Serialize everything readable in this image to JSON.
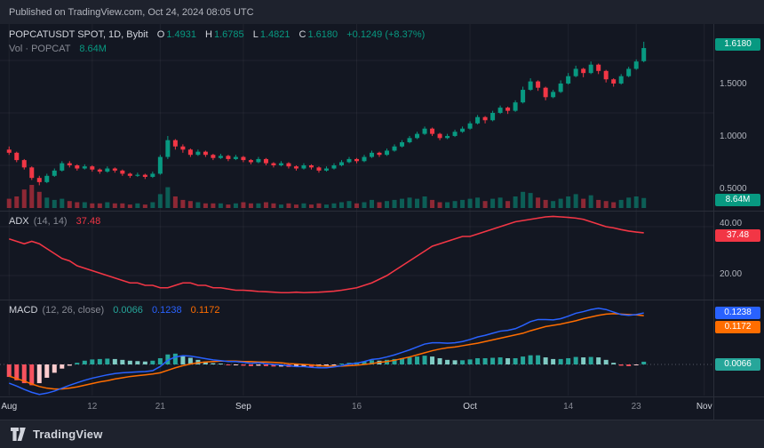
{
  "meta": {
    "published_line": "Published on TradingView.com, Oct 24, 2024 08:05 UTC"
  },
  "footer": {
    "brand": "TradingView"
  },
  "main": {
    "legend": {
      "symbol": "POPCATUSDT SPOT, 1D, Bybit",
      "o_label": "O",
      "o": "1.4931",
      "h_label": "H",
      "h": "1.6785",
      "l_label": "L",
      "l": "1.4821",
      "c_label": "C",
      "c": "1.6180",
      "change": "+0.1249 (+8.37%)"
    },
    "vol_legend": {
      "label": "Vol · POPCAT",
      "value": "8.64M"
    }
  },
  "adx": {
    "legend": {
      "name": "ADX",
      "params": "(14, 14)",
      "value": "37.48"
    }
  },
  "macd": {
    "legend": {
      "name": "MACD",
      "params": "(12, 26, close)",
      "hist": "0.0066",
      "macd": "0.1238",
      "signal": "0.1172"
    }
  },
  "price_axis": {
    "last_badge": "1.6180",
    "levels": [
      "1.5000",
      "1.0000",
      "0.5000"
    ],
    "vol_badge": "8.64M",
    "adx_levels": [
      "40.00",
      "20.00"
    ],
    "adx_badge": "37.48",
    "macd_badge": "0.1238",
    "signal_badge": "0.1172",
    "hist_badge": "0.0066"
  },
  "time_axis": {
    "total_slots": 93,
    "labels": [
      {
        "text": "Aug",
        "slot": 0,
        "major": true
      },
      {
        "text": "12",
        "slot": 11,
        "major": false
      },
      {
        "text": "21",
        "slot": 20,
        "major": false
      },
      {
        "text": "Sep",
        "slot": 31,
        "major": true
      },
      {
        "text": "16",
        "slot": 46,
        "major": false
      },
      {
        "text": "Oct",
        "slot": 61,
        "major": true
      },
      {
        "text": "14",
        "slot": 74,
        "major": false
      },
      {
        "text": "23",
        "slot": 83,
        "major": false
      },
      {
        "text": "Nov",
        "slot": 92,
        "major": true
      }
    ]
  },
  "colors": {
    "up": "#089981",
    "down": "#f23645",
    "up_vol": "rgba(8,153,129,0.55)",
    "down_vol": "rgba(242,54,69,0.55)",
    "grid": "rgba(134,137,147,0.10)"
  },
  "chart_data": [
    {
      "type": "candlestick",
      "title": "POPCATUSDT SPOT, 1D, Bybit",
      "interval": "1D",
      "y_ticks": [
        0.5,
        1.0,
        1.5
      ],
      "y_range": [
        0.28,
        1.85
      ],
      "last": {
        "o": 1.4931,
        "h": 1.6785,
        "l": 1.4821,
        "c": 1.618,
        "change": "+0.1249",
        "change_pct": "+8.37%"
      },
      "ohlc": [
        [
          0.65,
          0.68,
          0.6,
          0.62
        ],
        [
          0.62,
          0.63,
          0.53,
          0.55
        ],
        [
          0.55,
          0.56,
          0.46,
          0.48
        ],
        [
          0.48,
          0.49,
          0.36,
          0.38
        ],
        [
          0.38,
          0.4,
          0.31,
          0.34
        ],
        [
          0.34,
          0.42,
          0.33,
          0.4
        ],
        [
          0.4,
          0.47,
          0.39,
          0.45
        ],
        [
          0.45,
          0.54,
          0.44,
          0.52
        ],
        [
          0.52,
          0.54,
          0.48,
          0.5
        ],
        [
          0.5,
          0.51,
          0.45,
          0.47
        ],
        [
          0.47,
          0.51,
          0.46,
          0.49
        ],
        [
          0.49,
          0.5,
          0.44,
          0.46
        ],
        [
          0.46,
          0.47,
          0.42,
          0.44
        ],
        [
          0.44,
          0.49,
          0.43,
          0.47
        ],
        [
          0.47,
          0.48,
          0.43,
          0.45
        ],
        [
          0.45,
          0.46,
          0.4,
          0.42
        ],
        [
          0.42,
          0.43,
          0.38,
          0.4
        ],
        [
          0.4,
          0.43,
          0.39,
          0.41
        ],
        [
          0.41,
          0.42,
          0.37,
          0.39
        ],
        [
          0.39,
          0.44,
          0.38,
          0.42
        ],
        [
          0.42,
          0.6,
          0.41,
          0.58
        ],
        [
          0.58,
          0.78,
          0.56,
          0.74
        ],
        [
          0.74,
          0.75,
          0.65,
          0.68
        ],
        [
          0.68,
          0.7,
          0.62,
          0.65
        ],
        [
          0.65,
          0.66,
          0.58,
          0.6
        ],
        [
          0.6,
          0.65,
          0.59,
          0.63
        ],
        [
          0.63,
          0.64,
          0.58,
          0.6
        ],
        [
          0.6,
          0.61,
          0.55,
          0.57
        ],
        [
          0.57,
          0.61,
          0.56,
          0.59
        ],
        [
          0.59,
          0.6,
          0.54,
          0.56
        ],
        [
          0.56,
          0.6,
          0.55,
          0.58
        ],
        [
          0.58,
          0.59,
          0.53,
          0.55
        ],
        [
          0.55,
          0.56,
          0.51,
          0.53
        ],
        [
          0.53,
          0.58,
          0.52,
          0.56
        ],
        [
          0.56,
          0.57,
          0.5,
          0.52
        ],
        [
          0.52,
          0.53,
          0.48,
          0.5
        ],
        [
          0.5,
          0.54,
          0.49,
          0.52
        ],
        [
          0.52,
          0.53,
          0.47,
          0.49
        ],
        [
          0.49,
          0.5,
          0.45,
          0.47
        ],
        [
          0.47,
          0.52,
          0.46,
          0.5
        ],
        [
          0.5,
          0.51,
          0.46,
          0.48
        ],
        [
          0.48,
          0.49,
          0.43,
          0.45
        ],
        [
          0.45,
          0.49,
          0.44,
          0.47
        ],
        [
          0.47,
          0.52,
          0.46,
          0.5
        ],
        [
          0.5,
          0.55,
          0.49,
          0.53
        ],
        [
          0.53,
          0.58,
          0.52,
          0.56
        ],
        [
          0.56,
          0.57,
          0.52,
          0.54
        ],
        [
          0.54,
          0.6,
          0.53,
          0.58
        ],
        [
          0.58,
          0.64,
          0.57,
          0.62
        ],
        [
          0.62,
          0.63,
          0.58,
          0.6
        ],
        [
          0.6,
          0.66,
          0.59,
          0.64
        ],
        [
          0.64,
          0.7,
          0.63,
          0.68
        ],
        [
          0.68,
          0.74,
          0.67,
          0.72
        ],
        [
          0.72,
          0.78,
          0.71,
          0.76
        ],
        [
          0.76,
          0.82,
          0.75,
          0.8
        ],
        [
          0.8,
          0.87,
          0.79,
          0.85
        ],
        [
          0.85,
          0.86,
          0.78,
          0.8
        ],
        [
          0.8,
          0.81,
          0.74,
          0.76
        ],
        [
          0.76,
          0.8,
          0.75,
          0.78
        ],
        [
          0.78,
          0.84,
          0.77,
          0.82
        ],
        [
          0.82,
          0.87,
          0.81,
          0.85
        ],
        [
          0.85,
          0.92,
          0.84,
          0.9
        ],
        [
          0.9,
          0.98,
          0.89,
          0.96
        ],
        [
          0.96,
          0.97,
          0.9,
          0.93
        ],
        [
          0.93,
          1.02,
          0.92,
          1.0
        ],
        [
          1.0,
          1.07,
          0.99,
          1.05
        ],
        [
          1.05,
          1.06,
          0.99,
          1.02
        ],
        [
          1.02,
          1.12,
          1.01,
          1.1
        ],
        [
          1.1,
          1.25,
          1.09,
          1.22
        ],
        [
          1.22,
          1.33,
          1.21,
          1.3
        ],
        [
          1.3,
          1.31,
          1.21,
          1.24
        ],
        [
          1.24,
          1.25,
          1.12,
          1.15
        ],
        [
          1.15,
          1.22,
          1.14,
          1.2
        ],
        [
          1.2,
          1.31,
          1.19,
          1.28
        ],
        [
          1.28,
          1.38,
          1.27,
          1.35
        ],
        [
          1.35,
          1.45,
          1.34,
          1.42
        ],
        [
          1.42,
          1.43,
          1.34,
          1.38
        ],
        [
          1.38,
          1.49,
          1.37,
          1.46
        ],
        [
          1.46,
          1.47,
          1.37,
          1.4
        ],
        [
          1.4,
          1.41,
          1.29,
          1.32
        ],
        [
          1.32,
          1.33,
          1.25,
          1.28
        ],
        [
          1.28,
          1.37,
          1.27,
          1.35
        ],
        [
          1.35,
          1.44,
          1.34,
          1.42
        ],
        [
          1.42,
          1.51,
          1.41,
          1.49
        ],
        [
          1.4931,
          1.6785,
          1.4821,
          1.618
        ]
      ],
      "volume_m": [
        8,
        10,
        16,
        20,
        14,
        9,
        7,
        8,
        6,
        5,
        5,
        4,
        4,
        5,
        4,
        4,
        3,
        4,
        3,
        5,
        12,
        18,
        10,
        7,
        6,
        5,
        4,
        4,
        4,
        3,
        4,
        5,
        4,
        4,
        5,
        4,
        3,
        4,
        3,
        4,
        3,
        4,
        3,
        4,
        5,
        6,
        4,
        5,
        7,
        5,
        6,
        7,
        8,
        9,
        8,
        10,
        7,
        5,
        5,
        6,
        7,
        8,
        9,
        6,
        8,
        9,
        6,
        10,
        14,
        13,
        9,
        7,
        6,
        8,
        10,
        12,
        8,
        11,
        7,
        6,
        5,
        7,
        9,
        10,
        8.64
      ],
      "volume_last_label": "8.64M"
    },
    {
      "type": "line",
      "title": "ADX (14, 14)",
      "color": "#f23645",
      "y_ticks": [
        40,
        20
      ],
      "last": 37.48,
      "values": [
        35,
        34,
        33,
        34,
        33,
        31,
        29,
        27,
        26,
        24,
        23,
        22,
        21,
        20,
        19,
        18,
        17,
        17,
        16,
        16,
        15,
        15,
        16,
        17,
        17,
        16,
        16,
        15,
        15,
        14.5,
        14,
        14,
        13.8,
        13.5,
        13.4,
        13.2,
        13,
        13,
        13.2,
        13,
        13.1,
        13.2,
        13.4,
        13.6,
        14,
        14.5,
        15,
        16,
        17,
        18.5,
        20,
        22,
        24,
        26,
        28,
        30,
        32,
        33,
        34,
        35,
        36,
        36,
        37,
        38,
        39,
        40,
        41,
        42,
        42.5,
        43,
        43.5,
        44,
        44.2,
        44,
        43.8,
        43.5,
        43,
        42,
        41,
        40,
        39.5,
        38.8,
        38.2,
        37.8,
        37.48
      ]
    },
    {
      "type": "macd",
      "title": "MACD (12, 26, close)",
      "last": {
        "hist": 0.0066,
        "macd": 0.1238,
        "signal": 0.1172
      },
      "colors": {
        "macd": "#2962ff",
        "signal": "#ff6d00",
        "hist_pos": "#26a69a",
        "hist_pos_weak": "#80cbc4",
        "hist_neg": "#f7525f",
        "hist_neg_weak": "#fccbcd"
      },
      "macd": [
        -0.045,
        -0.052,
        -0.06,
        -0.067,
        -0.072,
        -0.069,
        -0.064,
        -0.057,
        -0.05,
        -0.044,
        -0.038,
        -0.033,
        -0.029,
        -0.025,
        -0.022,
        -0.02,
        -0.019,
        -0.018,
        -0.017,
        -0.015,
        -0.005,
        0.01,
        0.018,
        0.021,
        0.02,
        0.017,
        0.014,
        0.011,
        0.009,
        0.007,
        0.007,
        0.005,
        0.003,
        0.004,
        0.002,
        0.0,
        -0.001,
        -0.003,
        -0.005,
        -0.005,
        -0.007,
        -0.008,
        -0.008,
        -0.006,
        -0.003,
        0.001,
        0.003,
        0.007,
        0.012,
        0.014,
        0.018,
        0.023,
        0.029,
        0.035,
        0.042,
        0.049,
        0.052,
        0.052,
        0.051,
        0.052,
        0.055,
        0.06,
        0.066,
        0.07,
        0.075,
        0.08,
        0.082,
        0.086,
        0.094,
        0.103,
        0.108,
        0.108,
        0.107,
        0.11,
        0.116,
        0.123,
        0.127,
        0.132,
        0.135,
        0.132,
        0.126,
        0.12,
        0.118,
        0.12,
        0.1238
      ],
      "signal": [
        -0.028,
        -0.034,
        -0.04,
        -0.047,
        -0.053,
        -0.057,
        -0.059,
        -0.059,
        -0.057,
        -0.054,
        -0.05,
        -0.046,
        -0.042,
        -0.039,
        -0.035,
        -0.032,
        -0.029,
        -0.027,
        -0.025,
        -0.023,
        -0.02,
        -0.014,
        -0.008,
        -0.003,
        0.001,
        0.004,
        0.006,
        0.007,
        0.008,
        0.008,
        0.008,
        0.007,
        0.007,
        0.006,
        0.006,
        0.005,
        0.004,
        0.002,
        0.001,
        0.0,
        -0.001,
        -0.003,
        -0.004,
        -0.004,
        -0.004,
        -0.003,
        -0.002,
        0.0,
        0.002,
        0.005,
        0.007,
        0.01,
        0.014,
        0.018,
        0.023,
        0.028,
        0.033,
        0.037,
        0.04,
        0.042,
        0.045,
        0.048,
        0.051,
        0.055,
        0.059,
        0.063,
        0.067,
        0.071,
        0.075,
        0.081,
        0.086,
        0.091,
        0.094,
        0.097,
        0.101,
        0.105,
        0.11,
        0.114,
        0.118,
        0.121,
        0.122,
        0.121,
        0.12,
        0.119,
        0.1172
      ],
      "hist": [
        -0.03,
        -0.038,
        -0.045,
        -0.05,
        -0.045,
        -0.032,
        -0.02,
        -0.01,
        -0.003,
        0.004,
        0.009,
        0.012,
        0.013,
        0.014,
        0.013,
        0.011,
        0.009,
        0.008,
        0.007,
        0.009,
        0.015,
        0.024,
        0.026,
        0.021,
        0.016,
        0.011,
        0.007,
        0.003,
        0.0,
        -0.002,
        -0.002,
        -0.003,
        -0.004,
        -0.003,
        -0.004,
        -0.005,
        -0.005,
        -0.006,
        -0.006,
        -0.005,
        -0.006,
        -0.005,
        -0.004,
        -0.002,
        0.001,
        0.004,
        0.005,
        0.007,
        0.01,
        0.009,
        0.011,
        0.013,
        0.015,
        0.017,
        0.019,
        0.021,
        0.019,
        0.015,
        0.011,
        0.01,
        0.01,
        0.012,
        0.015,
        0.015,
        0.016,
        0.017,
        0.015,
        0.015,
        0.019,
        0.022,
        0.022,
        0.017,
        0.013,
        0.013,
        0.015,
        0.018,
        0.017,
        0.018,
        0.017,
        0.011,
        0.004,
        -0.003,
        -0.004,
        -0.002,
        0.0066
      ]
    }
  ]
}
